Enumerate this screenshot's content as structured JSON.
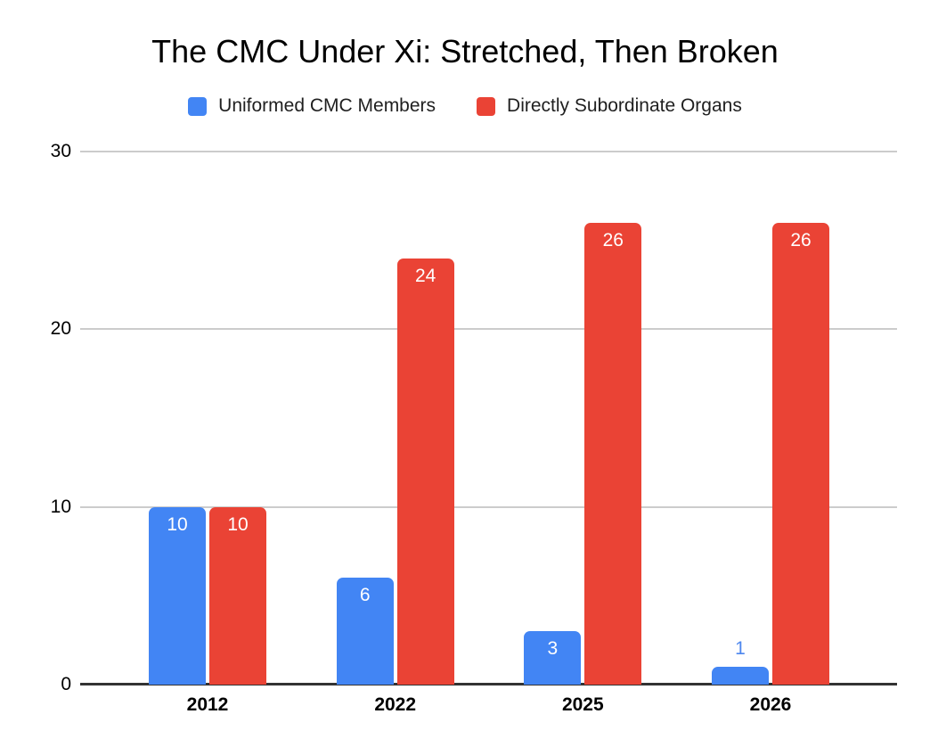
{
  "chart_data": {
    "type": "bar",
    "title": "The CMC Under Xi: Stretched, Then Broken",
    "categories": [
      "2012",
      "2022",
      "2025",
      "2026"
    ],
    "series": [
      {
        "name": "Uniformed CMC Members",
        "color": "#4285F4",
        "values": [
          10,
          6,
          3,
          1
        ]
      },
      {
        "name": "Directly Subordinate Organs",
        "color": "#EA4335",
        "values": [
          10,
          24,
          26,
          26
        ]
      }
    ],
    "bar_value_labels": [
      [
        "10",
        "6",
        "3",
        "1"
      ],
      [
        "10",
        "24",
        "26",
        "26"
      ]
    ],
    "xlabel": "",
    "ylabel": "",
    "ylim": [
      0,
      30
    ],
    "yticks": [
      "0",
      "10",
      "20",
      "30"
    ],
    "grid": true,
    "legend_position": "top",
    "colors": {
      "background": "#ffffff",
      "gridline": "#cccccc",
      "axis_line": "#333333",
      "inside_label": "#ffffff",
      "outside_label": "#4d87ee",
      "text": "#000000"
    }
  }
}
